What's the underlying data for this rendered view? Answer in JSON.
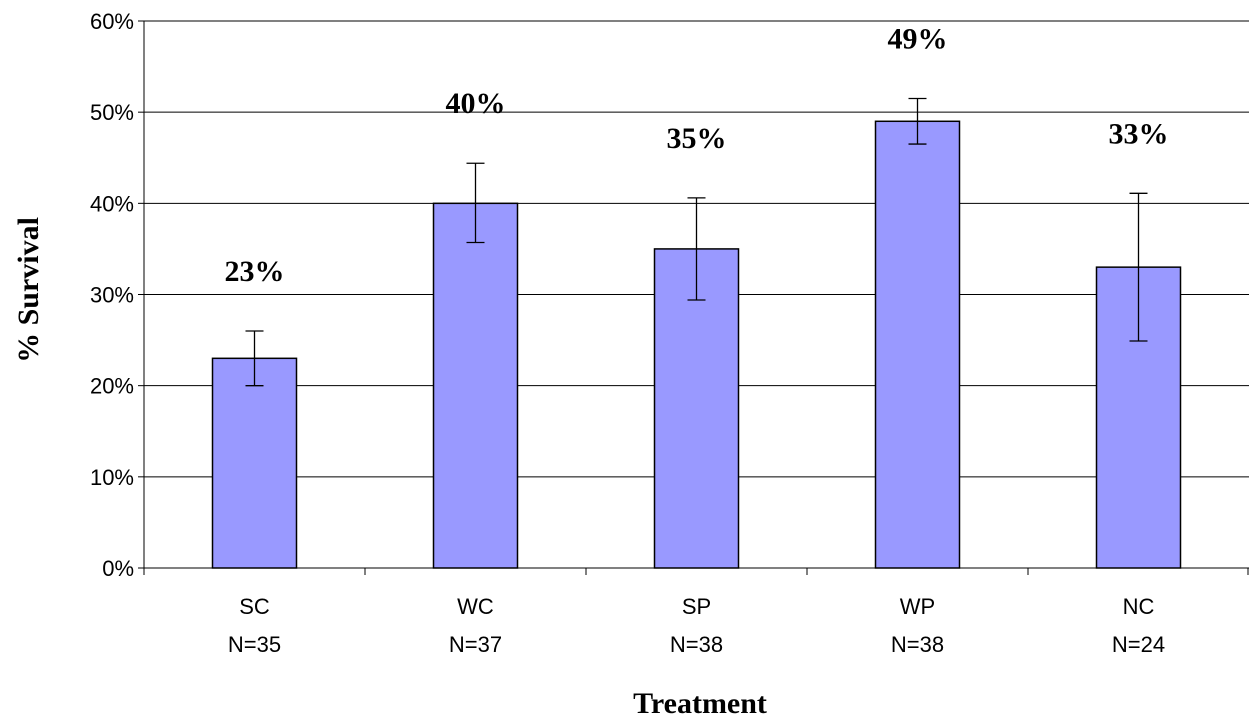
{
  "chart_data": {
    "type": "bar",
    "title": "",
    "xlabel": "Treatment",
    "ylabel": "% Survival",
    "ylim": [
      0,
      60
    ],
    "yticks": [
      "0%",
      "10%",
      "20%",
      "30%",
      "40%",
      "50%",
      "60%"
    ],
    "grid": "horizontal",
    "categories": [
      "SC",
      "WC",
      "SP",
      "WP",
      "NC"
    ],
    "sample_sizes": [
      "N=35",
      "N=37",
      "N=38",
      "N=38",
      "N=24"
    ],
    "values": [
      23,
      40,
      35,
      49,
      33
    ],
    "error_low": [
      20,
      35.7,
      29.4,
      46.5,
      24.9
    ],
    "error_high": [
      26,
      44.4,
      40.6,
      51.5,
      41.1
    ],
    "data_labels": [
      "23%",
      "40%",
      "35%",
      "49%",
      "33%"
    ],
    "bar_color": "#9999ff",
    "bar_edge_color": "#000000"
  }
}
